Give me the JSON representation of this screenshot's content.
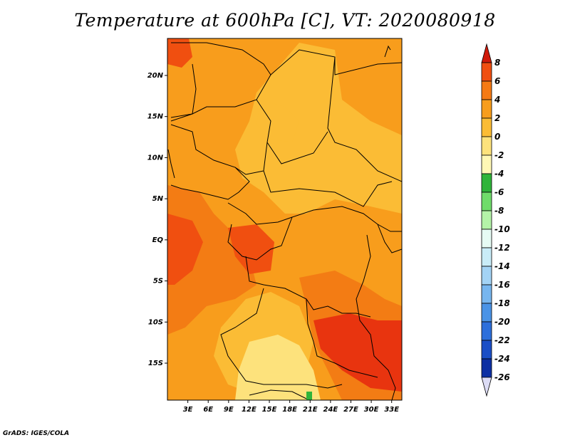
{
  "title": "Temperature at 600hPa [C], VT: 2020080918",
  "credit": "GrADS: IGES/COLA",
  "x_ticks": [
    "3E",
    "6E",
    "9E",
    "12E",
    "15E",
    "18E",
    "21E",
    "24E",
    "27E",
    "30E",
    "33E"
  ],
  "y_ticks": [
    "20N",
    "15N",
    "10N",
    "5N",
    "EQ",
    "5S",
    "10S",
    "15S"
  ],
  "colorbar": {
    "labels": [
      "8",
      "6",
      "4",
      "2",
      "0",
      "-2",
      "-4",
      "-6",
      "-8",
      "-10",
      "-12",
      "-14",
      "-16",
      "-18",
      "-20",
      "-22",
      "-24",
      "-26"
    ],
    "colors": [
      "#e8210f",
      "#f04f10",
      "#f57a14",
      "#f89d1c",
      "#fbbc35",
      "#fde27c",
      "#fff8b5",
      "#2fb43a",
      "#6fdc6a",
      "#b4f3a8",
      "#e6fbf4",
      "#c9ecf8",
      "#a3d3f5",
      "#77b6ef",
      "#4a93e6",
      "#2d6fdb",
      "#1a4ec6",
      "#0c2fa3",
      "#081b77"
    ],
    "top_arrow_color": "#d01a0a",
    "bottom_arrow_color": "#dcdcf5"
  },
  "map": {
    "lon_range": [
      0,
      34.5
    ],
    "lat_range": [
      -19.5,
      24.5
    ],
    "colors": {
      "hot": "#e8340f",
      "warm": "#f37c14",
      "orange": "#f89d1c",
      "light": "#fbbc35",
      "pale": "#fde27c",
      "cold": "#2fb43a"
    }
  }
}
